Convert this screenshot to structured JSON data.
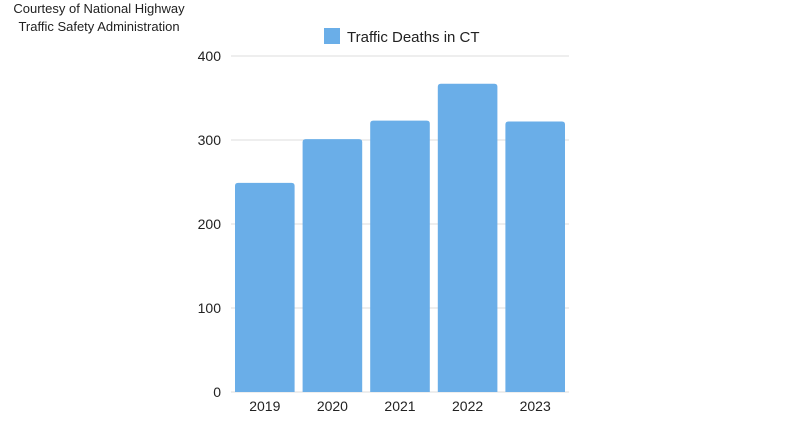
{
  "credit": {
    "line1": "Courtesy of National Highway",
    "line2": "Traffic Safety Administration"
  },
  "chart_data": {
    "type": "bar",
    "title": "",
    "xlabel": "",
    "ylabel": "",
    "categories": [
      "2019",
      "2020",
      "2021",
      "2022",
      "2023"
    ],
    "series": [
      {
        "name": "Traffic Deaths in CT",
        "values": [
          249,
          301,
          323,
          367,
          322
        ],
        "color": "#6aaee8"
      }
    ],
    "ylim": [
      0,
      400
    ],
    "yticks": [
      0,
      100,
      200,
      300,
      400
    ],
    "grid": true,
    "legend_position": "top"
  }
}
